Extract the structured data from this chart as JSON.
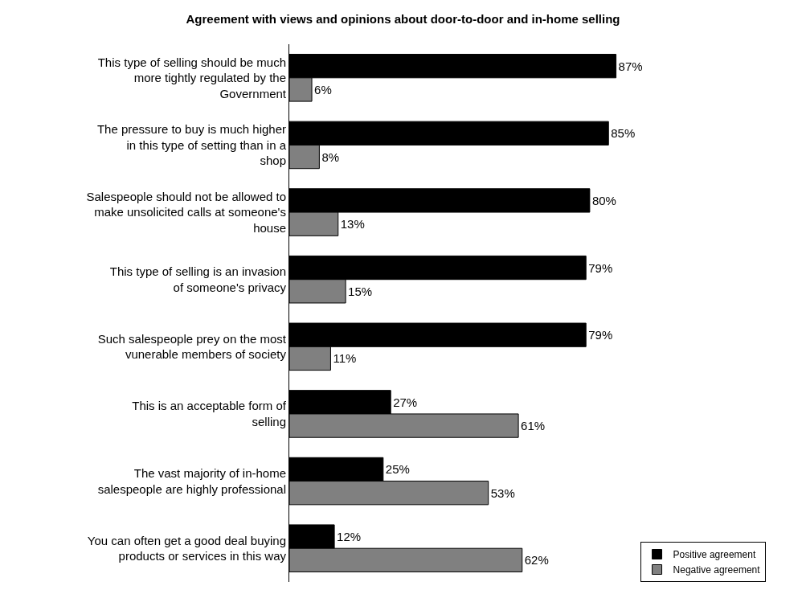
{
  "chart_data": {
    "type": "bar",
    "orientation": "horizontal",
    "title": "Agreement with views and opinions about door-to-door and in-home selling",
    "categories": [
      "This type of selling should be much more tightly regulated by the Government",
      "The pressure to buy is much higher in this type of setting than in a shop",
      "Salespeople should not be allowed to make unsolicited calls at someone's house",
      "This type of selling is an invasion of someone's privacy",
      "Such salespeople prey on the most vunerable members of society",
      "This is an acceptable form of selling",
      "The vast majority of in-home salespeople are highly professional",
      "You can often get a good deal buying products or services in this way"
    ],
    "series": [
      {
        "name": "Positive agreement",
        "color": "#000000",
        "values": [
          87,
          85,
          80,
          79,
          79,
          27,
          25,
          12
        ],
        "value_labels": [
          "87%",
          "85%",
          "80%",
          "79%",
          "79%",
          "27%",
          "25%",
          "12%"
        ]
      },
      {
        "name": "Negative agreement",
        "color": "#808080",
        "values": [
          6,
          8,
          13,
          15,
          11,
          61,
          53,
          62
        ],
        "value_labels": [
          "6%",
          "8%",
          "13%",
          "15%",
          "11%",
          "61%",
          "53%",
          "62%"
        ]
      }
    ],
    "legend": "bottom right",
    "grid": false
  }
}
